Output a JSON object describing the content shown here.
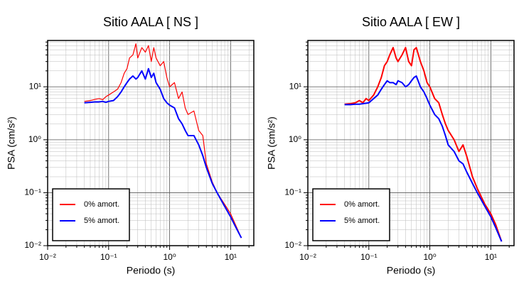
{
  "chart_data": [
    {
      "type": "line",
      "title": "Sitio AALA [ NS ]",
      "x_label": "Periodo (s)",
      "y_label": "PSA (cm/s²)",
      "log_x": true,
      "log_y": true,
      "grid": true,
      "minor_grid": true,
      "legend": "lower left",
      "xlim": [
        0.01,
        24
      ],
      "ylim": [
        0.01,
        75
      ],
      "xticks": [
        {
          "value": 0.01,
          "label": "10⁻²"
        },
        {
          "value": 0.1,
          "label": "10⁻¹"
        },
        {
          "value": 1,
          "label": "10⁰"
        },
        {
          "value": 10,
          "label": "10¹"
        }
      ],
      "yticks": [
        {
          "value": 0.01,
          "label": "10⁻²"
        },
        {
          "value": 0.1,
          "label": "10⁻¹"
        },
        {
          "value": 1,
          "label": "10⁰"
        },
        {
          "value": 10,
          "label": "10¹"
        }
      ],
      "x": [
        0.04,
        0.05,
        0.06,
        0.07,
        0.08,
        0.09,
        0.1,
        0.12,
        0.14,
        0.16,
        0.18,
        0.2,
        0.22,
        0.25,
        0.28,
        0.3,
        0.35,
        0.4,
        0.45,
        0.5,
        0.55,
        0.6,
        0.7,
        0.8,
        0.9,
        1,
        1.2,
        1.4,
        1.6,
        1.8,
        2,
        2.5,
        3,
        3.5,
        4,
        5,
        6,
        8,
        10,
        12,
        15
      ],
      "series": [
        {
          "name": "0% amort.",
          "color": "#ff0000",
          "width": 1.2,
          "values": [
            5.3,
            5.5,
            5.8,
            6,
            5.7,
            6.5,
            7,
            8,
            9,
            12,
            18,
            22,
            35,
            40,
            65,
            35,
            55,
            45,
            60,
            30,
            55,
            35,
            25,
            30,
            15,
            10,
            12,
            6,
            8,
            4,
            3,
            3.5,
            1.5,
            1.2,
            0.35,
            0.16,
            0.1,
            0.06,
            0.04,
            0.025,
            0.014
          ]
        },
        {
          "name": "5% amort.",
          "color": "#0000ff",
          "width": 2,
          "values": [
            5,
            5.1,
            5.2,
            5.2,
            5.3,
            5.1,
            5.3,
            5.5,
            6.5,
            8,
            10,
            12,
            14,
            16,
            14,
            15,
            20,
            14,
            22,
            15,
            18,
            12,
            9,
            6,
            5,
            4.5,
            4,
            2.5,
            2,
            1.5,
            1.2,
            1.2,
            0.8,
            0.5,
            0.3,
            0.15,
            0.1,
            0.055,
            0.035,
            0.023,
            0.014
          ]
        }
      ]
    },
    {
      "type": "line",
      "title": "Sitio AALA [ EW ]",
      "x_label": "Periodo (s)",
      "y_label": "PSA (cm/s²)",
      "log_x": true,
      "log_y": true,
      "grid": true,
      "minor_grid": true,
      "legend": "lower left",
      "xlim": [
        0.01,
        24
      ],
      "ylim": [
        0.01,
        75
      ],
      "xticks": [
        {
          "value": 0.01,
          "label": "10⁻²"
        },
        {
          "value": 0.1,
          "label": "10⁻¹"
        },
        {
          "value": 1,
          "label": "10⁰"
        },
        {
          "value": 10,
          "label": "10¹"
        }
      ],
      "yticks": [
        {
          "value": 0.01,
          "label": "10⁻²"
        },
        {
          "value": 0.1,
          "label": "10⁻¹"
        },
        {
          "value": 1,
          "label": "10⁰"
        },
        {
          "value": 10,
          "label": "10¹"
        }
      ],
      "x": [
        0.04,
        0.05,
        0.06,
        0.07,
        0.08,
        0.09,
        0.1,
        0.12,
        0.14,
        0.16,
        0.18,
        0.2,
        0.22,
        0.25,
        0.28,
        0.3,
        0.35,
        0.4,
        0.45,
        0.5,
        0.55,
        0.6,
        0.7,
        0.8,
        0.9,
        1,
        1.2,
        1.4,
        1.6,
        1.8,
        2,
        2.5,
        3,
        3.5,
        4,
        5,
        6,
        8,
        10,
        12,
        15
      ],
      "series": [
        {
          "name": "0% amort.",
          "color": "#ff0000",
          "width": 2,
          "values": [
            4.7,
            4.8,
            5,
            5.5,
            5,
            6,
            5.5,
            7,
            10,
            15,
            25,
            30,
            40,
            55,
            35,
            30,
            40,
            55,
            30,
            25,
            50,
            55,
            30,
            20,
            12,
            10,
            6,
            5,
            3,
            2,
            1.5,
            1,
            0.6,
            0.8,
            0.5,
            0.2,
            0.12,
            0.06,
            0.04,
            0.025,
            0.012
          ]
        },
        {
          "name": "5% amort.",
          "color": "#0000ff",
          "width": 2,
          "values": [
            4.6,
            4.6,
            4.7,
            4.7,
            4.8,
            4.9,
            5,
            6,
            7,
            9,
            11,
            13,
            12,
            12,
            11,
            13,
            12,
            10,
            11,
            13,
            15,
            16,
            10,
            8,
            6,
            4.5,
            3,
            2.5,
            1.8,
            1.2,
            0.8,
            0.6,
            0.4,
            0.35,
            0.25,
            0.15,
            0.1,
            0.055,
            0.035,
            0.022,
            0.012
          ]
        }
      ]
    }
  ]
}
